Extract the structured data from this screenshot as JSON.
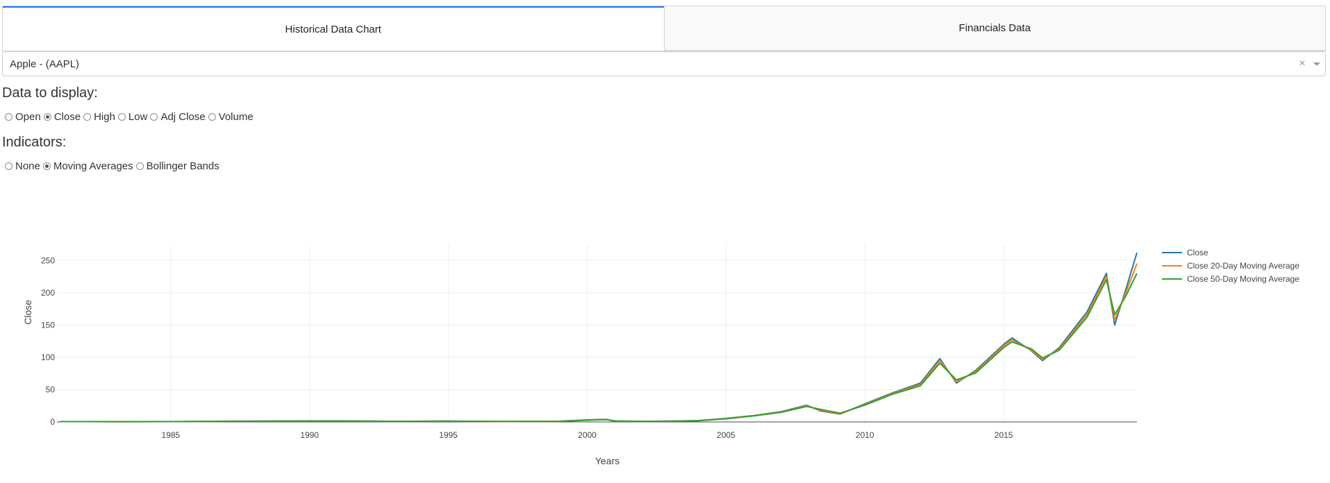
{
  "tabs": [
    {
      "label": "Historical Data Chart",
      "active": true
    },
    {
      "label": "Financials Data",
      "active": false
    }
  ],
  "ticker_select": {
    "value": "Apple - (AAPL)",
    "clear_symbol": "×"
  },
  "data_display": {
    "label": "Data to display:",
    "options": [
      "Open",
      "Close",
      "High",
      "Low",
      "Adj Close",
      "Volume"
    ],
    "selected": "Close"
  },
  "indicators": {
    "label": "Indicators:",
    "options": [
      "None",
      "Moving Averages",
      "Bollinger Bands"
    ],
    "selected": "Moving Averages"
  },
  "chart_data": {
    "type": "line",
    "xlabel": "Years",
    "ylabel": "Close",
    "xlim": [
      1980.9,
      2019.8
    ],
    "ylim": [
      0,
      275
    ],
    "xticks": [
      "1985",
      "1990",
      "1995",
      "2000",
      "2005",
      "2010",
      "2015"
    ],
    "yticks": [
      "0",
      "50",
      "100",
      "150",
      "200",
      "250"
    ],
    "grid": true,
    "legend_placement": "top-right",
    "colors": {
      "Close": "#1f77b4",
      "Close 20-Day Moving Average": "#ff7f0e",
      "Close 50-Day Moving Average": "#2ca02c"
    },
    "x": [
      1981,
      1983,
      1985,
      1987,
      1989,
      1991,
      1993,
      1995,
      1997,
      1999,
      2000,
      2000.7,
      2001,
      2002,
      2003,
      2004,
      2005,
      2006,
      2007,
      2007.9,
      2008.4,
      2009.1,
      2010,
      2011,
      2012,
      2012.7,
      2013.3,
      2014,
      2015,
      2015.3,
      2016,
      2016.4,
      2017,
      2018,
      2018.7,
      2019,
      2019.4,
      2019.8
    ],
    "series": [
      {
        "name": "Close",
        "values": [
          0.5,
          0.4,
          0.5,
          1.2,
          1.3,
          1.6,
          1.0,
          1.2,
          0.6,
          1.1,
          3.2,
          4.0,
          1.2,
          1.0,
          1.2,
          2.0,
          5.5,
          10.0,
          16.0,
          26.0,
          17.0,
          12.0,
          28.0,
          45.0,
          60.0,
          98.0,
          60.0,
          80.0,
          120.0,
          130.0,
          110.0,
          95.0,
          115.0,
          170.0,
          230.0,
          150.0,
          205.0,
          262.0
        ]
      },
      {
        "name": "Close 20-Day Moving Average",
        "values": [
          0.5,
          0.4,
          0.5,
          1.1,
          1.3,
          1.5,
          1.0,
          1.2,
          0.6,
          1.0,
          3.0,
          3.8,
          1.3,
          1.0,
          1.2,
          1.9,
          5.2,
          9.8,
          15.5,
          25.0,
          18.0,
          12.5,
          27.0,
          44.0,
          58.0,
          95.0,
          62.0,
          78.0,
          118.0,
          127.0,
          111.0,
          97.0,
          113.0,
          166.0,
          225.0,
          158.0,
          200.0,
          245.0
        ]
      },
      {
        "name": "Close 50-Day Moving Average",
        "values": [
          0.5,
          0.4,
          0.5,
          1.0,
          1.3,
          1.5,
          1.0,
          1.2,
          0.7,
          1.0,
          2.7,
          3.6,
          1.5,
          1.0,
          1.2,
          1.8,
          4.8,
          9.5,
          15.0,
          24.0,
          19.5,
          13.5,
          26.0,
          43.0,
          56.0,
          91.0,
          65.0,
          76.0,
          115.0,
          124.0,
          113.0,
          99.0,
          111.0,
          162.0,
          220.0,
          166.0,
          195.0,
          230.0
        ]
      }
    ]
  }
}
